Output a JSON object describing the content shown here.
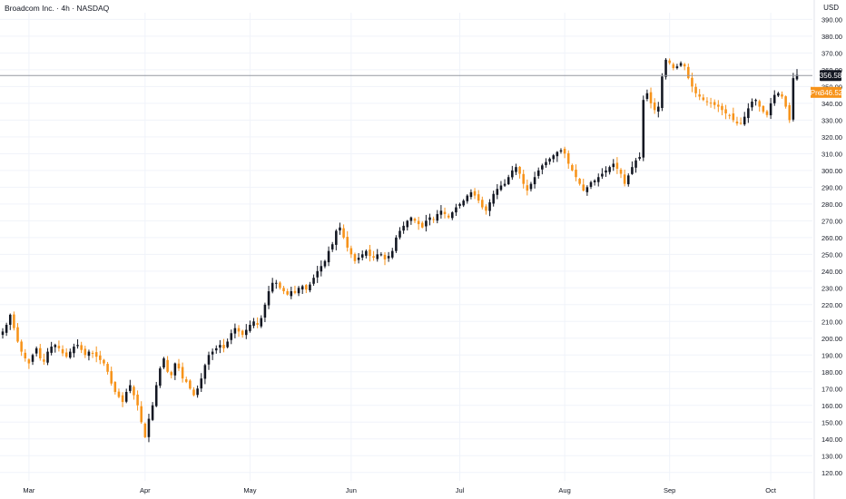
{
  "header": {
    "symbol_title": "Broadcom Inc. · 4h · NASDAQ",
    "currency": "USD"
  },
  "colors": {
    "up": "#131722",
    "down": "#f7931a",
    "grid": "#f0f3fa",
    "price_line": "#9598a1"
  },
  "chart_data": {
    "type": "candlestick",
    "x_labels": [
      "Mar",
      "Apr",
      "May",
      "Jun",
      "Jul",
      "Aug",
      "Sep",
      "Oct"
    ],
    "y_ticks": [
      120,
      130,
      140,
      150,
      160,
      170,
      180,
      190,
      200,
      210,
      220,
      230,
      240,
      250,
      260,
      270,
      280,
      290,
      300,
      310,
      320,
      330,
      340,
      350,
      360,
      370,
      380,
      390
    ],
    "y_tick_labels": [
      "120.00",
      "130.00",
      "140.00",
      "150.00",
      "160.00",
      "170.00",
      "180.00",
      "190.00",
      "200.00",
      "210.00",
      "220.00",
      "230.00",
      "240.00",
      "250.00",
      "260.00",
      "270.00",
      "280.00",
      "290.00",
      "300.00",
      "310.00",
      "320.00",
      "330.00",
      "340.00",
      "350.00",
      "360.00",
      "370.00",
      "380.00",
      "390.00"
    ],
    "ylim": [
      115,
      394
    ],
    "last_price": {
      "value": 356.58,
      "label": "356.58"
    },
    "premarket": {
      "value": 346.52,
      "label": "346.52",
      "tag": "Pre"
    },
    "grid": true,
    "closes": [
      204,
      208,
      214,
      206,
      198,
      192,
      188,
      185,
      190,
      194,
      188,
      186,
      192,
      195,
      196,
      194,
      191,
      189,
      192,
      195,
      196,
      193,
      190,
      192,
      191,
      189,
      187,
      185,
      180,
      173,
      168,
      165,
      162,
      168,
      172,
      166,
      160,
      150,
      141,
      152,
      160,
      172,
      182,
      188,
      180,
      178,
      185,
      182,
      176,
      174,
      170,
      166,
      170,
      176,
      184,
      190,
      192,
      194,
      196,
      194,
      198,
      203,
      206,
      204,
      202,
      205,
      208,
      210,
      208,
      212,
      220,
      228,
      233,
      233,
      230,
      228,
      226,
      228,
      227,
      230,
      231,
      229,
      232,
      236,
      240,
      243,
      246,
      252,
      256,
      264,
      266,
      260,
      254,
      250,
      246,
      248,
      250,
      252,
      249,
      248,
      250,
      250,
      247,
      249,
      252,
      260,
      264,
      267,
      270,
      272,
      270,
      268,
      266,
      270,
      272,
      271,
      274,
      276,
      274,
      272,
      275,
      278,
      280,
      282,
      285,
      287,
      285,
      282,
      278,
      276,
      281,
      286,
      289,
      291,
      292,
      296,
      300,
      302,
      298,
      292,
      288,
      292,
      296,
      300,
      303,
      305,
      307,
      309,
      311,
      312,
      310,
      304,
      300,
      296,
      292,
      288,
      290,
      293,
      294,
      296,
      298,
      300,
      302,
      304,
      301,
      298,
      292,
      297,
      302,
      306,
      308,
      342,
      346,
      340,
      336,
      338,
      356,
      366,
      364,
      361,
      362,
      364,
      362,
      355,
      350,
      346,
      344,
      342,
      341,
      340,
      339,
      338,
      336,
      334,
      333,
      330,
      328,
      328,
      332,
      337,
      341,
      342,
      338,
      335,
      333,
      340,
      345,
      346,
      344,
      338,
      330,
      355,
      357
    ]
  }
}
